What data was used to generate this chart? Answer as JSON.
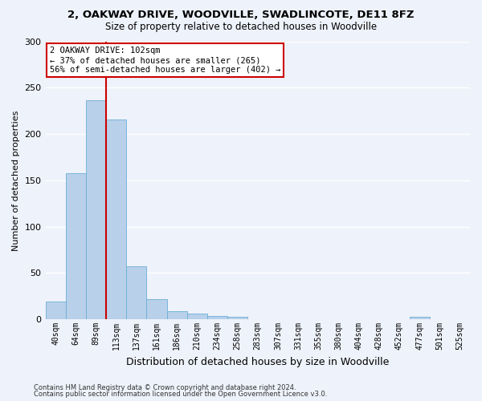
{
  "title": "2, OAKWAY DRIVE, WOODVILLE, SWADLINCOTE, DE11 8FZ",
  "subtitle": "Size of property relative to detached houses in Woodville",
  "xlabel": "Distribution of detached houses by size in Woodville",
  "ylabel": "Number of detached properties",
  "bar_values": [
    19,
    158,
    236,
    216,
    57,
    22,
    9,
    6,
    4,
    3,
    0,
    0,
    0,
    0,
    0,
    0,
    0,
    0,
    3,
    0,
    0
  ],
  "bin_labels": [
    "40sqm",
    "64sqm",
    "89sqm",
    "113sqm",
    "137sqm",
    "161sqm",
    "186sqm",
    "210sqm",
    "234sqm",
    "258sqm",
    "283sqm",
    "307sqm",
    "331sqm",
    "355sqm",
    "380sqm",
    "404sqm",
    "428sqm",
    "452sqm",
    "477sqm",
    "501sqm",
    "525sqm"
  ],
  "bar_color": "#b8d0ea",
  "bar_edge_color": "#6aaed6",
  "property_label": "2 OAKWAY DRIVE: 102sqm",
  "annotation_line1": "← 37% of detached houses are smaller (265)",
  "annotation_line2": "56% of semi-detached houses are larger (402) →",
  "vline_color": "#cc0000",
  "vline_x": 2.5,
  "ylim": [
    0,
    300
  ],
  "yticks": [
    0,
    50,
    100,
    150,
    200,
    250,
    300
  ],
  "footer1": "Contains HM Land Registry data © Crown copyright and database right 2024.",
  "footer2": "Contains public sector information licensed under the Open Government Licence v3.0.",
  "bg_color": "#eef2fa",
  "grid_color": "#ffffff",
  "annotation_box_color": "#ffffff",
  "annotation_box_edge": "#cc0000"
}
